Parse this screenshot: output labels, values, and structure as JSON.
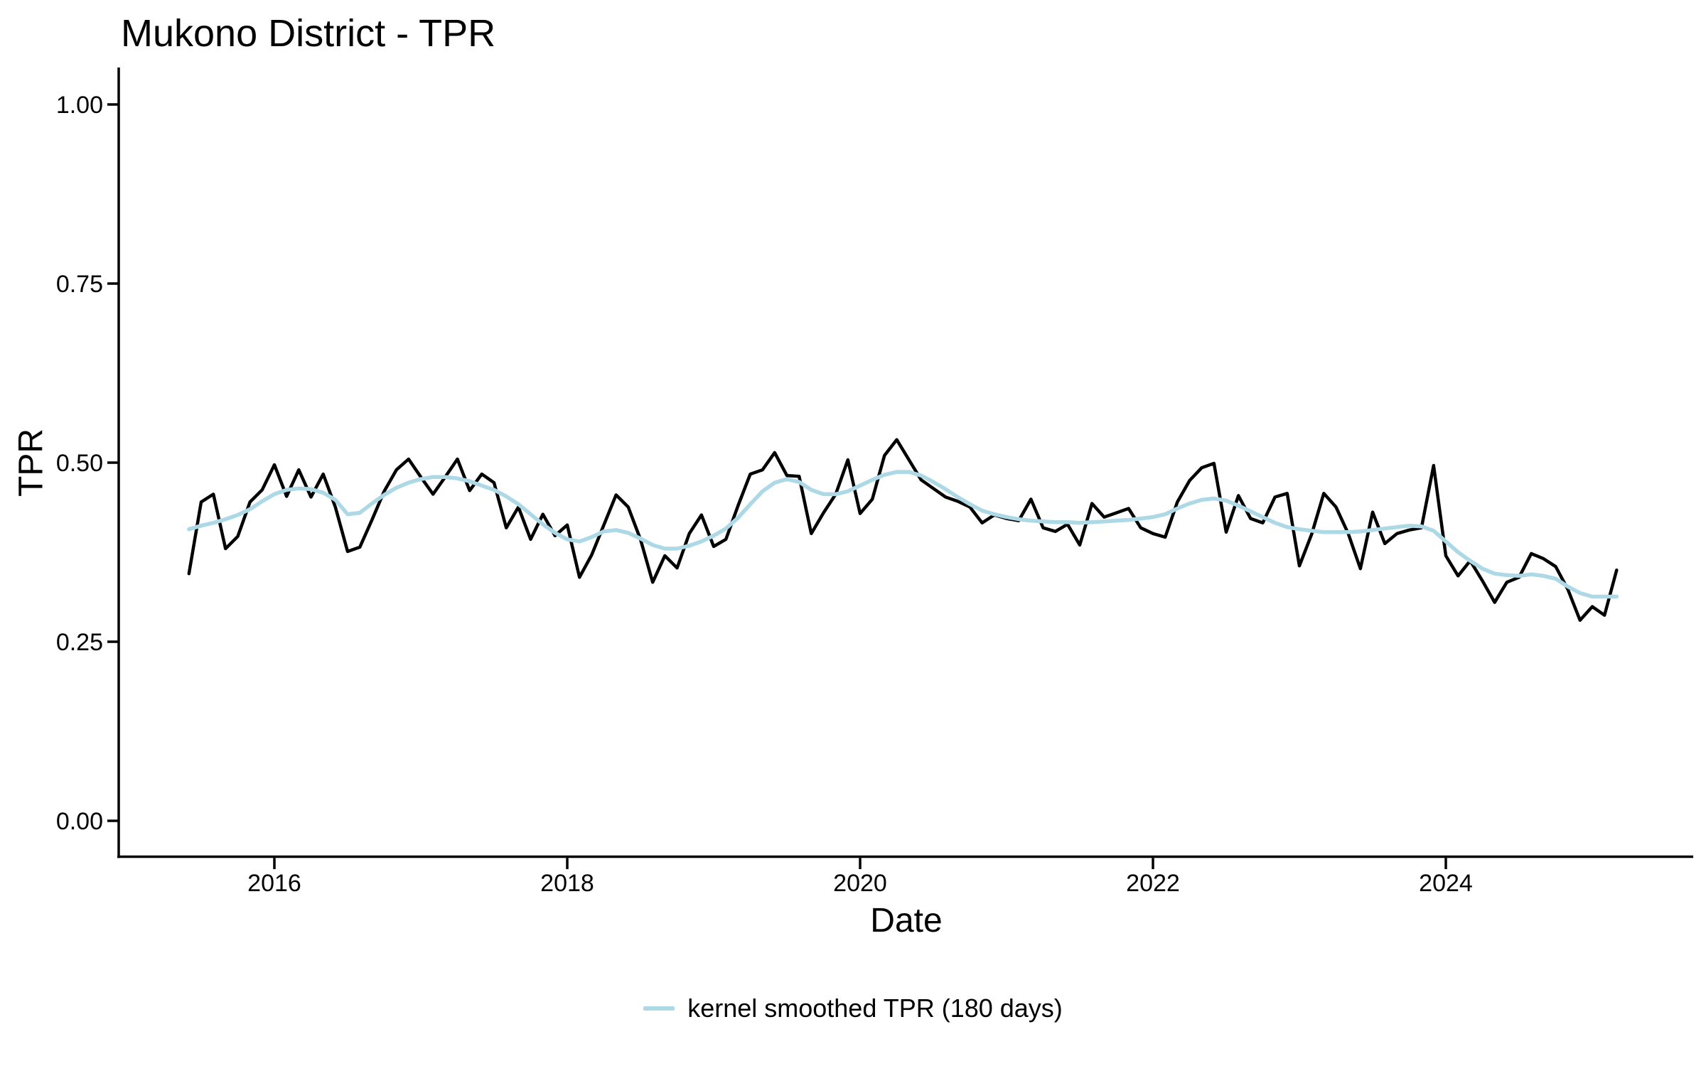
{
  "chart_data": {
    "type": "line",
    "title": "Mukono District - TPR",
    "xlabel": "Date",
    "ylabel": "TPR",
    "grid": "off",
    "background": "#FFFFFF",
    "legend": {
      "position": "bottom",
      "label": "kernel smoothed TPR (180 days)",
      "swatch_color": "#ADD8E6"
    },
    "x_axis": {
      "ticks": [
        {
          "label": "2016",
          "year": 2016
        },
        {
          "label": "2018",
          "year": 2018
        },
        {
          "label": "2020",
          "year": 2020
        },
        {
          "label": "2022",
          "year": 2022
        },
        {
          "label": "2024",
          "year": 2024
        }
      ],
      "range": [
        "2015-06",
        "2025-03"
      ]
    },
    "y_axis": {
      "ticks": [
        {
          "label": "0.00",
          "value": 0.0
        },
        {
          "label": "0.25",
          "value": 0.25
        },
        {
          "label": "0.50",
          "value": 0.5
        },
        {
          "label": "0.75",
          "value": 0.75
        },
        {
          "label": "1.00",
          "value": 1.0
        }
      ],
      "ylim": [
        0,
        1
      ]
    },
    "start": {
      "year": 2015,
      "month": 6
    },
    "frequency": "monthly",
    "end": {
      "year": 2025,
      "month": 3
    },
    "series": [
      {
        "name": "TPR",
        "color": "#000000",
        "values": [
          0.345,
          0.445,
          0.456,
          0.38,
          0.397,
          0.445,
          0.462,
          0.497,
          0.453,
          0.49,
          0.452,
          0.484,
          0.438,
          0.376,
          0.382,
          0.42,
          0.46,
          0.49,
          0.505,
          0.48,
          0.456,
          0.48,
          0.505,
          0.461,
          0.484,
          0.472,
          0.409,
          0.438,
          0.393,
          0.428,
          0.398,
          0.413,
          0.34,
          0.371,
          0.413,
          0.455,
          0.438,
          0.393,
          0.333,
          0.37,
          0.353,
          0.401,
          0.427,
          0.383,
          0.393,
          0.44,
          0.484,
          0.49,
          0.514,
          0.482,
          0.481,
          0.401,
          0.43,
          0.456,
          0.504,
          0.429,
          0.449,
          0.51,
          0.532,
          0.504,
          0.476,
          0.464,
          0.452,
          0.446,
          0.438,
          0.416,
          0.427,
          0.422,
          0.419,
          0.449,
          0.409,
          0.404,
          0.414,
          0.385,
          0.443,
          0.424,
          0.43,
          0.436,
          0.409,
          0.401,
          0.396,
          0.445,
          0.475,
          0.493,
          0.499,
          0.403,
          0.454,
          0.422,
          0.416,
          0.452,
          0.457,
          0.356,
          0.4,
          0.457,
          0.438,
          0.401,
          0.352,
          0.431,
          0.387,
          0.401,
          0.406,
          0.409,
          0.496,
          0.37,
          0.342,
          0.363,
          0.335,
          0.305,
          0.333,
          0.34,
          0.373,
          0.366,
          0.355,
          0.323,
          0.28,
          0.299,
          0.287,
          0.35
        ]
      },
      {
        "name": "kernel smoothed TPR (180 days)",
        "color": "#ADD8E6",
        "values": [
          0.407,
          0.412,
          0.416,
          0.421,
          0.427,
          0.435,
          0.446,
          0.456,
          0.462,
          0.464,
          0.463,
          0.458,
          0.448,
          0.428,
          0.43,
          0.443,
          0.455,
          0.465,
          0.472,
          0.477,
          0.48,
          0.48,
          0.478,
          0.474,
          0.468,
          0.462,
          0.453,
          0.442,
          0.428,
          0.414,
          0.402,
          0.393,
          0.39,
          0.396,
          0.404,
          0.406,
          0.402,
          0.394,
          0.385,
          0.38,
          0.38,
          0.384,
          0.39,
          0.398,
          0.408,
          0.423,
          0.442,
          0.46,
          0.472,
          0.477,
          0.473,
          0.462,
          0.456,
          0.456,
          0.46,
          0.468,
          0.476,
          0.483,
          0.487,
          0.487,
          0.482,
          0.473,
          0.463,
          0.452,
          0.442,
          0.433,
          0.428,
          0.424,
          0.421,
          0.419,
          0.418,
          0.417,
          0.417,
          0.416,
          0.417,
          0.418,
          0.419,
          0.42,
          0.422,
          0.424,
          0.428,
          0.436,
          0.443,
          0.448,
          0.45,
          0.447,
          0.44,
          0.432,
          0.424,
          0.416,
          0.41,
          0.407,
          0.405,
          0.403,
          0.403,
          0.403,
          0.404,
          0.406,
          0.408,
          0.41,
          0.412,
          0.411,
          0.405,
          0.39,
          0.375,
          0.363,
          0.352,
          0.345,
          0.343,
          0.342,
          0.344,
          0.342,
          0.338,
          0.327,
          0.318,
          0.313,
          0.313,
          0.313
        ]
      }
    ]
  }
}
